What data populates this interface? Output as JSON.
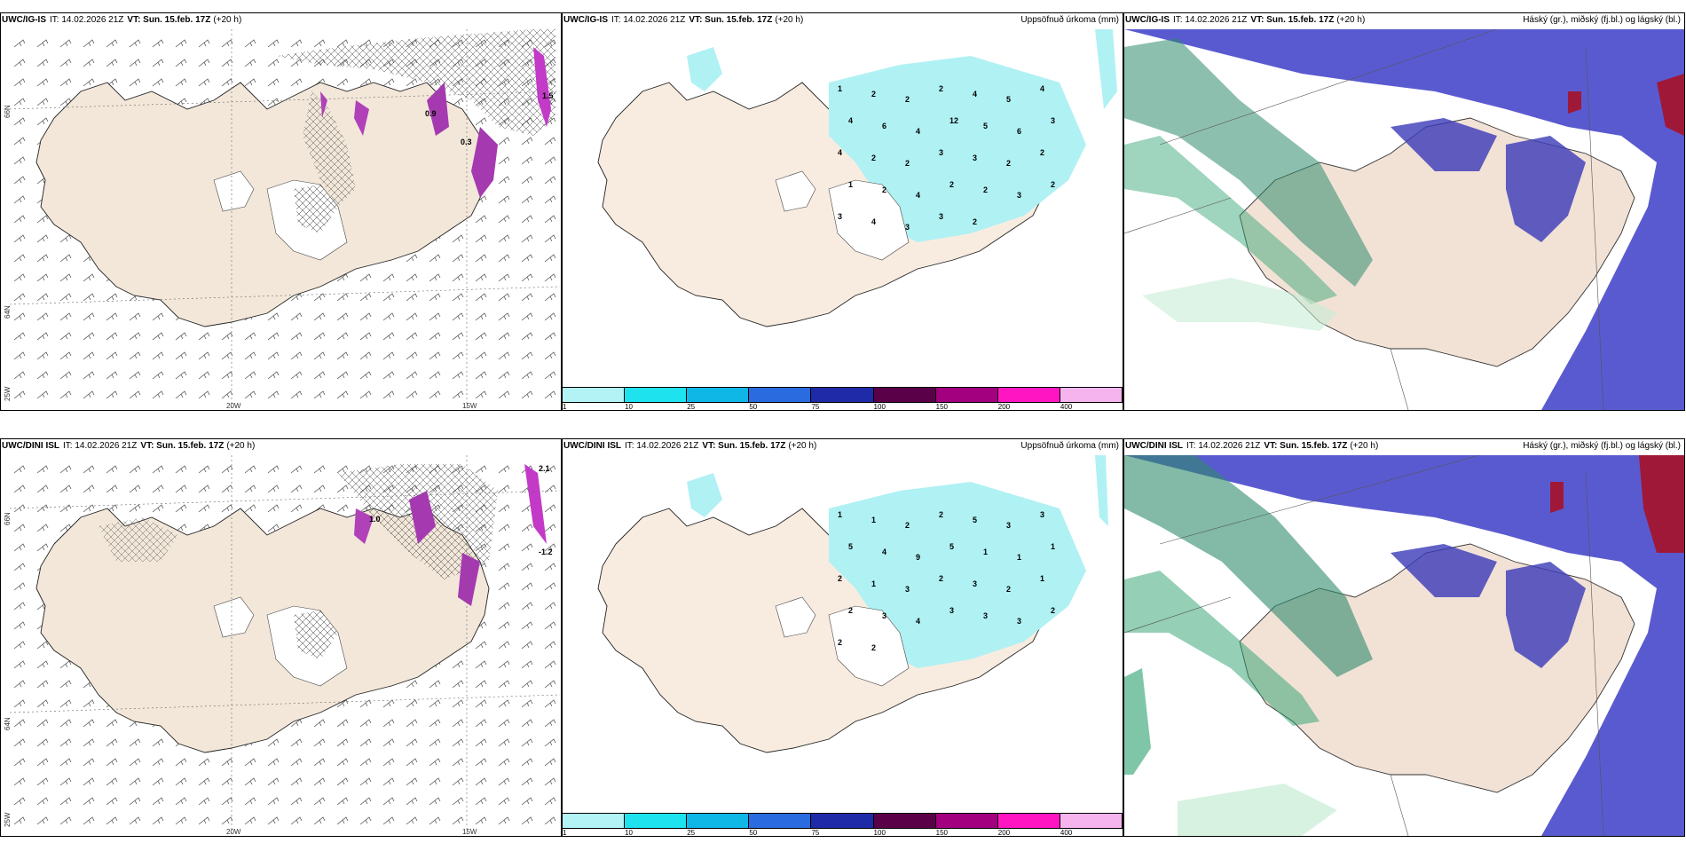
{
  "panels": {
    "top_left": {
      "model": "UWC/IG-IS",
      "it": "IT: 14.02.2026 21Z",
      "vt": "VT: Sun. 15.feb. 17Z",
      "lead": "(+20 h)",
      "right": ""
    },
    "top_mid": {
      "model": "UWC/IG-IS",
      "it": "IT: 14.02.2026 21Z",
      "vt": "VT: Sun. 15.feb. 17Z",
      "lead": "(+20 h)",
      "right": "Uppsöfnuð úrkoma (mm)"
    },
    "top_right": {
      "model": "UWC/IG-IS",
      "it": "IT: 14.02.2026 21Z",
      "vt": "VT: Sun. 15.feb. 17Z",
      "lead": "(+20 h)",
      "right": "Háský (gr.), miðský (fj.bl.) og lágský (bl.)"
    },
    "bot_left": {
      "model": "UWC/DINI ISL",
      "it": "IT: 14.02.2026 21Z",
      "vt": "VT: Sun. 15.feb. 17Z",
      "lead": "(+20 h)",
      "right": ""
    },
    "bot_mid": {
      "model": "UWC/DINI ISL",
      "it": "IT: 14.02.2026 21Z",
      "vt": "VT: Sun. 15.feb. 17Z",
      "lead": "(+20 h)",
      "right": "Uppsöfnuð úrkoma (mm)"
    },
    "bot_right": {
      "model": "UWC/DINI ISL",
      "it": "IT: 14.02.2026 21Z",
      "vt": "VT: Sun. 15.feb. 17Z",
      "lead": "(+20 h)",
      "right": "Háský (gr.), miðský (fj.bl.) og lágský (bl.)"
    }
  },
  "axes": {
    "lat66": "66N",
    "lat64": "64N",
    "lon25": "25W",
    "lon20": "20W",
    "lon15": "15W"
  },
  "colorbar": {
    "ticks": [
      "1",
      "10",
      "25",
      "50",
      "75",
      "100",
      "150",
      "200",
      "400"
    ],
    "colors": [
      "#b3f3f5",
      "#1ee3ef",
      "#0fb7e6",
      "#2a6be0",
      "#1f2aa8",
      "#5a0049",
      "#a3007f",
      "#ff16c2",
      "#f6b4ee"
    ]
  },
  "precip_labels": {
    "top": [
      "1",
      "2",
      "2",
      "2",
      "4",
      "5",
      "4",
      "4",
      "6",
      "4",
      "12",
      "5",
      "6",
      "3",
      "4",
      "2",
      "2",
      "3",
      "3",
      "2",
      "2",
      "1",
      "2",
      "4",
      "2",
      "2",
      "3",
      "2",
      "3",
      "4",
      "3",
      "3",
      "2"
    ],
    "bottom": [
      "1",
      "1",
      "2",
      "2",
      "5",
      "3",
      "3",
      "5",
      "4",
      "9",
      "5",
      "1",
      "1",
      "1",
      "2",
      "1",
      "3",
      "2",
      "3",
      "2",
      "1",
      "2",
      "3",
      "4",
      "3",
      "3",
      "3",
      "2",
      "2",
      "2"
    ]
  },
  "temp_labels": {
    "top": [
      "0.9",
      "0.3",
      "1.5"
    ],
    "bottom": [
      "2.1",
      "1.0",
      "-1.2"
    ]
  },
  "map_colors": {
    "land": "#f2e7d9",
    "precip": "#b0f1f4",
    "cloud_high": "#4d4ebd",
    "cloud_mid": "#2f8a6d",
    "cloud_low": "#5a5ad0"
  }
}
